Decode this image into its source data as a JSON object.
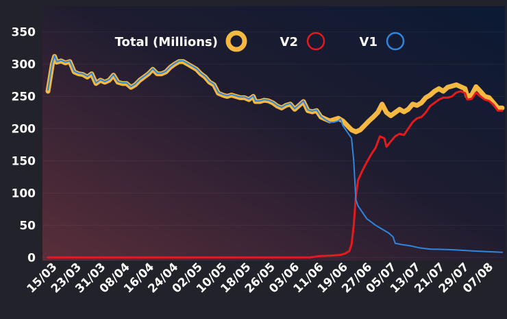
{
  "chart_data": {
    "type": "line",
    "title": "",
    "xlabel": "",
    "ylabel": "",
    "ylim": [
      -5,
      390
    ],
    "yticks": [
      0,
      50,
      100,
      150,
      200,
      250,
      300,
      350
    ],
    "xtick_labels": [
      "15/03",
      "23/03",
      "31/03",
      "08/04",
      "16/04",
      "24/04",
      "02/05",
      "10/05",
      "18/05",
      "26/05",
      "03/06",
      "11/06",
      "19/06",
      "27/06",
      "05/07",
      "13/07",
      "21/07",
      "29/07",
      "07/08"
    ],
    "x_start_day": 0,
    "x_end_day": 150,
    "tick_step_days": 8,
    "series": [
      {
        "name": "Total (Millions)",
        "color": "#f5b942",
        "points": [
          [
            0,
            258
          ],
          [
            2,
            300
          ],
          [
            3,
            312
          ],
          [
            4,
            303
          ],
          [
            6,
            305
          ],
          [
            8,
            302
          ],
          [
            10,
            304
          ],
          [
            12,
            288
          ],
          [
            14,
            285
          ],
          [
            16,
            284
          ],
          [
            18,
            280
          ],
          [
            20,
            285
          ],
          [
            22,
            270
          ],
          [
            24,
            275
          ],
          [
            26,
            272
          ],
          [
            28,
            275
          ],
          [
            30,
            283
          ],
          [
            32,
            272
          ],
          [
            34,
            270
          ],
          [
            36,
            270
          ],
          [
            38,
            264
          ],
          [
            40,
            268
          ],
          [
            42,
            275
          ],
          [
            44,
            280
          ],
          [
            46,
            285
          ],
          [
            48,
            292
          ],
          [
            50,
            285
          ],
          [
            52,
            285
          ],
          [
            54,
            288
          ],
          [
            56,
            295
          ],
          [
            58,
            300
          ],
          [
            60,
            304
          ],
          [
            62,
            304
          ],
          [
            64,
            300
          ],
          [
            66,
            296
          ],
          [
            68,
            292
          ],
          [
            70,
            285
          ],
          [
            72,
            280
          ],
          [
            74,
            272
          ],
          [
            76,
            268
          ],
          [
            78,
            255
          ],
          [
            80,
            252
          ],
          [
            82,
            250
          ],
          [
            84,
            252
          ],
          [
            86,
            250
          ],
          [
            88,
            248
          ],
          [
            90,
            248
          ],
          [
            92,
            245
          ],
          [
            94,
            250
          ],
          [
            95,
            242
          ],
          [
            97,
            242
          ],
          [
            99,
            244
          ],
          [
            101,
            243
          ],
          [
            103,
            240
          ],
          [
            105,
            235
          ],
          [
            107,
            232
          ],
          [
            109,
            236
          ],
          [
            111,
            238
          ],
          [
            113,
            230
          ],
          [
            115,
            236
          ],
          [
            117,
            242
          ],
          [
            119,
            228
          ],
          [
            121,
            226
          ],
          [
            123,
            228
          ],
          [
            125,
            218
          ],
          [
            127,
            215
          ],
          [
            129,
            212
          ],
          [
            131,
            214
          ],
          [
            133,
            216
          ],
          [
            135,
            212
          ],
          [
            137,
            205
          ],
          [
            139,
            198
          ],
          [
            141,
            195
          ],
          [
            143,
            198
          ],
          [
            145,
            205
          ],
          [
            147,
            212
          ],
          [
            149,
            218
          ],
          [
            151,
            225
          ],
          [
            153,
            238
          ],
          [
            155,
            225
          ],
          [
            157,
            220
          ],
          [
            159,
            225
          ],
          [
            161,
            230
          ],
          [
            163,
            226
          ],
          [
            165,
            230
          ],
          [
            167,
            238
          ],
          [
            169,
            236
          ],
          [
            171,
            240
          ],
          [
            173,
            248
          ],
          [
            175,
            252
          ],
          [
            177,
            258
          ],
          [
            179,
            262
          ],
          [
            181,
            258
          ],
          [
            183,
            264
          ],
          [
            185,
            266
          ],
          [
            187,
            268
          ],
          [
            189,
            265
          ],
          [
            191,
            262
          ],
          [
            192,
            250
          ],
          [
            194,
            252
          ],
          [
            196,
            265
          ],
          [
            198,
            258
          ],
          [
            200,
            250
          ],
          [
            202,
            248
          ],
          [
            204,
            240
          ],
          [
            206,
            232
          ],
          [
            208,
            232
          ]
        ]
      },
      {
        "name": "V2",
        "color": "#e41a1c",
        "points": [
          [
            0,
            0
          ],
          [
            120,
            0
          ],
          [
            124,
            2
          ],
          [
            130,
            3
          ],
          [
            134,
            4
          ],
          [
            136,
            6
          ],
          [
            138,
            10
          ],
          [
            139,
            20
          ],
          [
            140,
            50
          ],
          [
            141,
            95
          ],
          [
            142,
            120
          ],
          [
            144,
            135
          ],
          [
            146,
            148
          ],
          [
            148,
            160
          ],
          [
            150,
            170
          ],
          [
            152,
            188
          ],
          [
            154,
            185
          ],
          [
            155,
            172
          ],
          [
            157,
            180
          ],
          [
            159,
            188
          ],
          [
            161,
            192
          ],
          [
            163,
            190
          ],
          [
            165,
            200
          ],
          [
            167,
            210
          ],
          [
            169,
            216
          ],
          [
            171,
            218
          ],
          [
            173,
            225
          ],
          [
            175,
            235
          ],
          [
            177,
            240
          ],
          [
            179,
            245
          ],
          [
            181,
            248
          ],
          [
            183,
            248
          ],
          [
            185,
            250
          ],
          [
            187,
            256
          ],
          [
            189,
            258
          ],
          [
            191,
            255
          ],
          [
            192,
            245
          ],
          [
            194,
            246
          ],
          [
            196,
            256
          ],
          [
            198,
            250
          ],
          [
            200,
            245
          ],
          [
            202,
            243
          ],
          [
            204,
            237
          ],
          [
            206,
            228
          ],
          [
            208,
            228
          ]
        ]
      },
      {
        "name": "V1",
        "color": "#2e86de",
        "points": [
          [
            0,
            260
          ],
          [
            2,
            302
          ],
          [
            3,
            313
          ],
          [
            4,
            304
          ],
          [
            6,
            306
          ],
          [
            8,
            303
          ],
          [
            10,
            305
          ],
          [
            12,
            289
          ],
          [
            14,
            286
          ],
          [
            16,
            285
          ],
          [
            18,
            281
          ],
          [
            20,
            286
          ],
          [
            22,
            271
          ],
          [
            24,
            276
          ],
          [
            26,
            273
          ],
          [
            28,
            276
          ],
          [
            30,
            284
          ],
          [
            32,
            273
          ],
          [
            34,
            271
          ],
          [
            36,
            271
          ],
          [
            38,
            265
          ],
          [
            40,
            269
          ],
          [
            42,
            276
          ],
          [
            44,
            281
          ],
          [
            46,
            286
          ],
          [
            48,
            293
          ],
          [
            50,
            286
          ],
          [
            52,
            286
          ],
          [
            54,
            289
          ],
          [
            56,
            296
          ],
          [
            58,
            301
          ],
          [
            60,
            305
          ],
          [
            62,
            305
          ],
          [
            64,
            301
          ],
          [
            66,
            297
          ],
          [
            68,
            293
          ],
          [
            70,
            286
          ],
          [
            72,
            281
          ],
          [
            74,
            273
          ],
          [
            76,
            269
          ],
          [
            78,
            256
          ],
          [
            80,
            253
          ],
          [
            82,
            251
          ],
          [
            84,
            253
          ],
          [
            86,
            251
          ],
          [
            88,
            249
          ],
          [
            90,
            249
          ],
          [
            92,
            246
          ],
          [
            94,
            251
          ],
          [
            95,
            243
          ],
          [
            97,
            243
          ],
          [
            99,
            245
          ],
          [
            101,
            244
          ],
          [
            103,
            241
          ],
          [
            105,
            236
          ],
          [
            107,
            233
          ],
          [
            109,
            237
          ],
          [
            111,
            239
          ],
          [
            113,
            231
          ],
          [
            115,
            237
          ],
          [
            117,
            243
          ],
          [
            119,
            229
          ],
          [
            121,
            227
          ],
          [
            123,
            229
          ],
          [
            125,
            219
          ],
          [
            127,
            214
          ],
          [
            129,
            210
          ],
          [
            131,
            210
          ],
          [
            133,
            212
          ],
          [
            134,
            215
          ],
          [
            135,
            205
          ],
          [
            136,
            200
          ],
          [
            137,
            195
          ],
          [
            138,
            190
          ],
          [
            139,
            185
          ],
          [
            140,
            150
          ],
          [
            141,
            90
          ],
          [
            142,
            80
          ],
          [
            144,
            70
          ],
          [
            146,
            60
          ],
          [
            148,
            55
          ],
          [
            150,
            50
          ],
          [
            152,
            46
          ],
          [
            154,
            42
          ],
          [
            156,
            38
          ],
          [
            158,
            32
          ],
          [
            159,
            22
          ],
          [
            162,
            20
          ],
          [
            166,
            18
          ],
          [
            170,
            15
          ],
          [
            175,
            13
          ],
          [
            185,
            12
          ],
          [
            195,
            10
          ],
          [
            208,
            8
          ]
        ]
      }
    ],
    "legend": "top-center"
  }
}
